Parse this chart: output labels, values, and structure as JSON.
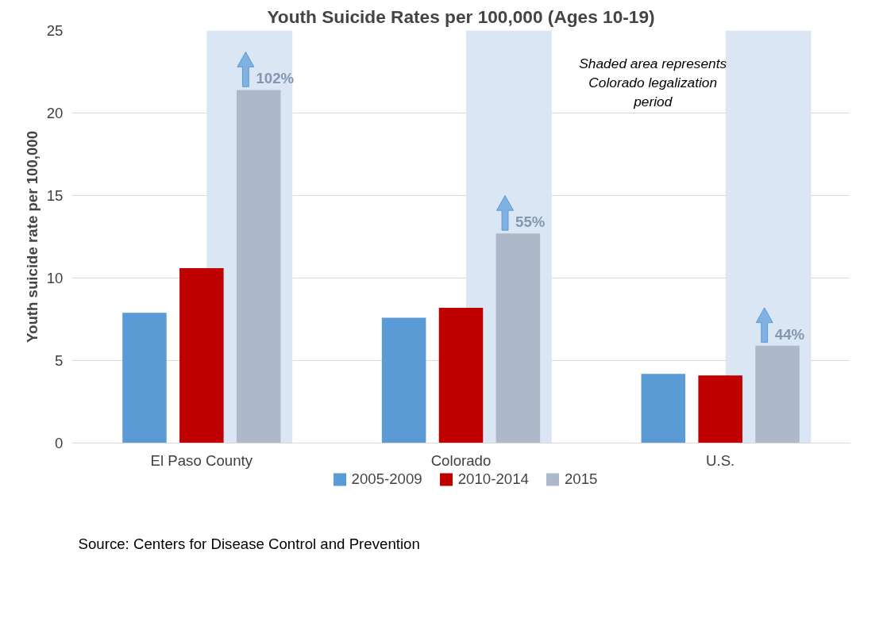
{
  "chart_data": {
    "type": "bar",
    "title": "Youth Suicide Rates per 100,000 (Ages 10-19)",
    "ylabel": "Youth suicide rate per 100,000",
    "categories": [
      "El Paso County",
      "Colorado",
      "U.S."
    ],
    "series": [
      {
        "name": "2005-2009",
        "color": "#5b9bd5",
        "values": [
          7.9,
          7.6,
          4.2
        ]
      },
      {
        "name": "2010-2014",
        "color": "#c00000",
        "values": [
          10.6,
          8.2,
          4.1
        ]
      },
      {
        "name": "2015",
        "color": "#adb9ca",
        "values": [
          21.4,
          12.7,
          5.9
        ]
      }
    ],
    "ylim": [
      0,
      25
    ],
    "yticks": [
      0,
      5,
      10,
      15,
      20,
      25
    ],
    "grid": "y",
    "legend": "bottom",
    "bands": [
      {
        "axis": "x",
        "from": "El Paso County",
        "to": "El Paso County",
        "color": "#dae6f3"
      },
      {
        "axis": "x",
        "from": "Colorado",
        "to": "Colorado",
        "color": "#dae6f3"
      },
      {
        "axis": "x",
        "from": "U.S.",
        "to": "U.S.",
        "color": "#dae6f3"
      }
    ],
    "annotations": [
      "Shaded area represents Colorado legalization period",
      "Source: Centers for Disease Control and Prevention",
      "102%",
      "55%",
      "44%"
    ]
  }
}
